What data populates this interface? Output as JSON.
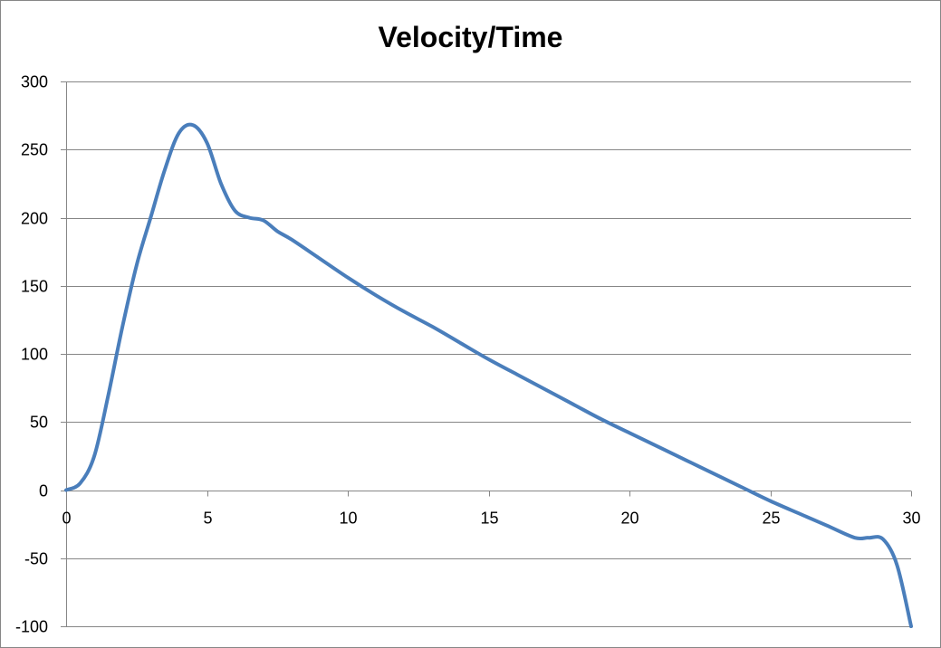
{
  "chart_data": {
    "type": "line",
    "title": "Velocity/Time",
    "xlabel": "",
    "ylabel": "",
    "xlim": [
      0,
      30
    ],
    "ylim": [
      -100,
      300
    ],
    "x_ticks": [
      0,
      5,
      10,
      15,
      20,
      25,
      30
    ],
    "y_ticks": [
      300,
      250,
      200,
      150,
      100,
      50,
      0,
      -50,
      -100
    ],
    "grid": "horizontal",
    "legend": "none",
    "series": [
      {
        "color": "#4A7EBB",
        "points": [
          [
            0,
            0
          ],
          [
            0.5,
            5
          ],
          [
            1,
            25
          ],
          [
            1.5,
            70
          ],
          [
            2,
            120
          ],
          [
            2.5,
            165
          ],
          [
            3,
            200
          ],
          [
            3.5,
            235
          ],
          [
            4,
            262
          ],
          [
            4.5,
            268
          ],
          [
            5,
            255
          ],
          [
            5.5,
            225
          ],
          [
            6,
            205
          ],
          [
            6.5,
            200
          ],
          [
            7,
            198
          ],
          [
            7.5,
            190
          ],
          [
            8,
            184
          ],
          [
            9,
            170
          ],
          [
            10,
            156
          ],
          [
            11,
            143
          ],
          [
            12,
            131
          ],
          [
            13,
            120
          ],
          [
            14,
            108
          ],
          [
            15,
            96
          ],
          [
            16,
            85
          ],
          [
            17,
            74
          ],
          [
            18,
            63
          ],
          [
            19,
            52
          ],
          [
            20,
            42
          ],
          [
            21,
            32
          ],
          [
            22,
            22
          ],
          [
            23,
            12
          ],
          [
            24,
            2
          ],
          [
            25,
            -8
          ],
          [
            26,
            -17
          ],
          [
            27,
            -26
          ],
          [
            28,
            -35
          ],
          [
            28.5,
            -35
          ],
          [
            29,
            -36
          ],
          [
            29.5,
            -55
          ],
          [
            30,
            -100
          ]
        ]
      }
    ]
  }
}
